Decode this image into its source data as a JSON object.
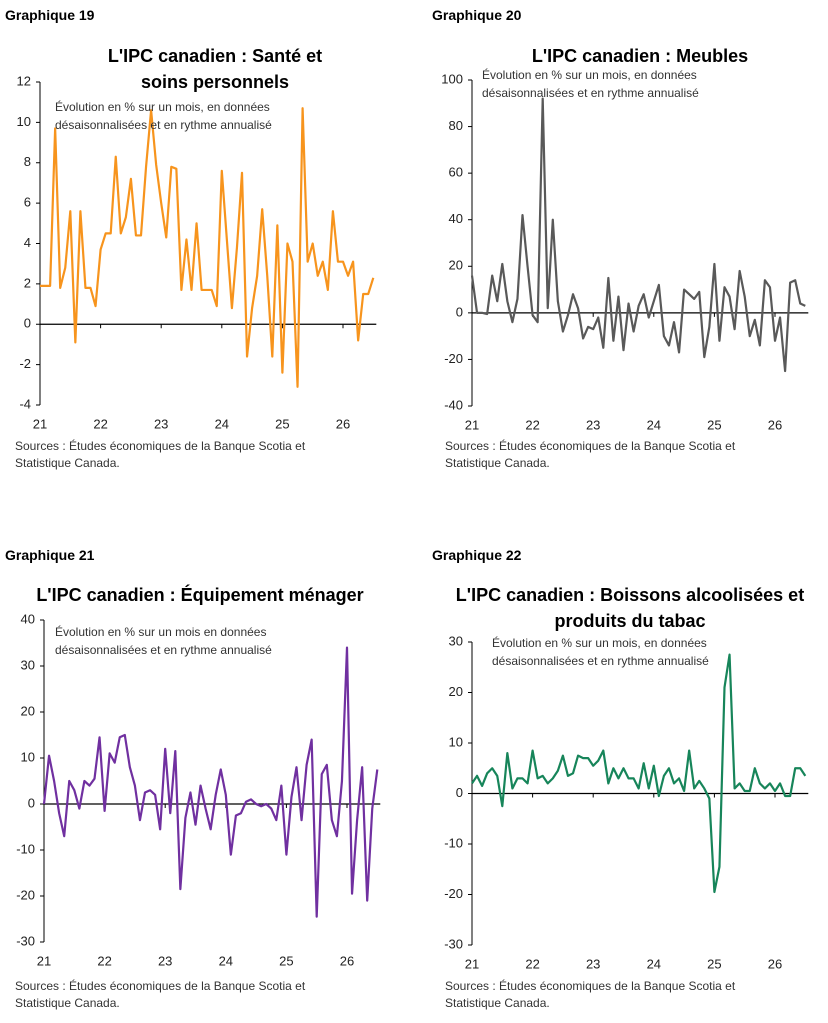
{
  "chart_data": [
    {
      "type": "line",
      "label": "Graphique 19",
      "title": "L'IPC canadien : Santé et soins personnels",
      "subtitle": "Évolution en % sur un mois, en données désaisonnalisées et en rythme annualisé",
      "source": "Sources : Études économiques de la Banque Scotia et Statistique Canada.",
      "color": "#f7941d",
      "categories": [
        "21",
        null,
        null,
        null,
        null,
        null,
        null,
        null,
        null,
        null,
        null,
        null,
        "22",
        null,
        null,
        null,
        null,
        null,
        null,
        null,
        null,
        null,
        null,
        null,
        "23",
        null,
        null,
        null,
        null,
        null,
        null,
        null,
        null,
        null,
        null,
        null,
        "24",
        null,
        null,
        null,
        null,
        null,
        null,
        null,
        null,
        null,
        null,
        null,
        "25",
        null,
        null,
        null,
        null,
        null,
        null,
        null,
        null,
        null,
        null,
        null,
        "26",
        null,
        null,
        null,
        null,
        null,
        null
      ],
      "values": [
        1.9,
        1.9,
        1.9,
        9.7,
        1.8,
        2.8,
        5.6,
        -0.9,
        5.6,
        1.8,
        1.8,
        0.9,
        3.7,
        4.5,
        4.5,
        8.3,
        4.5,
        5.3,
        7.2,
        4.4,
        4.4,
        7.8,
        10.6,
        7.9,
        6.0,
        4.3,
        7.8,
        7.7,
        1.7,
        4.2,
        1.7,
        5.0,
        1.7,
        1.7,
        1.7,
        0.9,
        7.6,
        4.2,
        0.8,
        3.8,
        7.5,
        -1.6,
        0.8,
        2.4,
        5.7,
        2.4,
        -1.6,
        4.9,
        -2.4,
        4.0,
        3.1,
        -3.1,
        10.7,
        3.1,
        4.0,
        2.4,
        3.1,
        1.7,
        5.6,
        3.1,
        3.1,
        2.4,
        3.1,
        -0.8,
        1.5,
        1.5,
        2.3
      ],
      "ylim": [
        -4,
        12
      ],
      "yticks": [
        -4,
        -2,
        0,
        2,
        4,
        6,
        8,
        10,
        12
      ]
    },
    {
      "type": "line",
      "label": "Graphique 20",
      "title": "L'IPC canadien : Meubles",
      "subtitle": "Évolution en % sur un mois, en données désaisonnalisées et en rythme annualisé",
      "source": "Sources : Études économiques de la Banque Scotia et Statistique Canada.",
      "color": "#595959",
      "categories": [
        "21",
        null,
        null,
        null,
        null,
        null,
        null,
        null,
        null,
        null,
        null,
        null,
        "22",
        null,
        null,
        null,
        null,
        null,
        null,
        null,
        null,
        null,
        null,
        null,
        "23",
        null,
        null,
        null,
        null,
        null,
        null,
        null,
        null,
        null,
        null,
        null,
        "24",
        null,
        null,
        null,
        null,
        null,
        null,
        null,
        null,
        null,
        null,
        null,
        "25",
        null,
        null,
        null,
        null,
        null,
        null,
        null,
        null,
        null,
        null,
        null,
        "26",
        null,
        null,
        null,
        null,
        null,
        null
      ],
      "values": [
        16,
        0,
        0,
        -0.5,
        16,
        5,
        21,
        5,
        -4,
        6,
        42,
        20,
        -1,
        -4,
        92,
        2,
        40,
        5,
        -8,
        -1,
        8,
        2,
        -11,
        -6,
        -7,
        -2,
        -15,
        15,
        -12,
        7,
        -16,
        4,
        -8,
        3,
        8,
        -2,
        5,
        12,
        -10,
        -14,
        -4,
        -17,
        10,
        8,
        6,
        9,
        -19,
        -6,
        21,
        -12,
        11,
        7,
        -7,
        18,
        7,
        -10,
        -3,
        -14,
        14,
        11,
        -12,
        -2,
        -25,
        13,
        14,
        4,
        3
      ],
      "ylim": [
        -40,
        100
      ],
      "yticks": [
        -40,
        -20,
        0,
        20,
        40,
        60,
        80,
        100
      ]
    },
    {
      "type": "line",
      "label": "Graphique 21",
      "title": "L'IPC canadien : Équipement ménager",
      "subtitle": "Évolution en % sur un mois en données désaisonnalisées et en rythme annualisé",
      "source": "Sources : Études économiques de la Banque Scotia et Statistique Canada.",
      "color": "#7030a0",
      "categories": [
        "21",
        null,
        null,
        null,
        null,
        null,
        null,
        null,
        null,
        null,
        null,
        null,
        "22",
        null,
        null,
        null,
        null,
        null,
        null,
        null,
        null,
        null,
        null,
        null,
        "23",
        null,
        null,
        null,
        null,
        null,
        null,
        null,
        null,
        null,
        null,
        null,
        "24",
        null,
        null,
        null,
        null,
        null,
        null,
        null,
        null,
        null,
        null,
        null,
        "25",
        null,
        null,
        null,
        null,
        null,
        null,
        null,
        null,
        null,
        null,
        null,
        "26",
        null,
        null,
        null,
        null,
        null,
        null
      ],
      "values": [
        0,
        10.5,
        5,
        -2,
        -7,
        5,
        3,
        -1,
        5,
        4,
        5.5,
        14.5,
        -1.5,
        11,
        9,
        14.5,
        15,
        8,
        4,
        -3.5,
        2.5,
        3,
        2,
        -5.5,
        12,
        -2,
        11.5,
        -18.5,
        -3,
        2.5,
        -4.5,
        4,
        -1,
        -5.5,
        2,
        7.5,
        2,
        -11,
        -2.5,
        -2,
        0.5,
        1,
        0,
        -0.5,
        0,
        -1,
        -3.5,
        4,
        -11,
        1.5,
        8,
        -3.5,
        8.5,
        14,
        -24.5,
        6.5,
        8.5,
        -3.5,
        -7,
        5,
        34,
        -19.5,
        -3.5,
        8,
        -21,
        -1,
        7.5
      ],
      "ylim": [
        -30,
        40
      ],
      "yticks": [
        -30,
        -20,
        -10,
        0,
        10,
        20,
        30,
        40
      ]
    },
    {
      "type": "line",
      "label": "Graphique 22",
      "title": "L'IPC canadien : Boissons alcoolisées et produits du tabac",
      "subtitle": "Évolution en % sur un mois, en données désaisonnalisées et en rythme annualisé",
      "source": "Sources : Études économiques de la Banque Scotia et Statistique Canada.",
      "color": "#17855a",
      "categories": [
        "21",
        null,
        null,
        null,
        null,
        null,
        null,
        null,
        null,
        null,
        null,
        null,
        "22",
        null,
        null,
        null,
        null,
        null,
        null,
        null,
        null,
        null,
        null,
        null,
        "23",
        null,
        null,
        null,
        null,
        null,
        null,
        null,
        null,
        null,
        null,
        null,
        "24",
        null,
        null,
        null,
        null,
        null,
        null,
        null,
        null,
        null,
        null,
        null,
        "25",
        null,
        null,
        null,
        null,
        null,
        null,
        null,
        null,
        null,
        null,
        null,
        "26",
        null,
        null,
        null,
        null,
        null,
        null
      ],
      "values": [
        2,
        3.5,
        1.5,
        4,
        5,
        3.5,
        -2.5,
        8,
        1,
        3,
        3,
        2,
        8.5,
        3,
        3.5,
        2,
        3,
        4.5,
        7.5,
        3.5,
        4,
        7.5,
        7,
        7,
        5.5,
        6.5,
        8.5,
        2,
        5,
        3,
        5,
        3,
        3,
        1,
        6,
        1,
        5.5,
        -0.5,
        3.5,
        5,
        2,
        3,
        0.5,
        8.5,
        1,
        2.5,
        1,
        -1,
        -19.5,
        -14.5,
        21,
        27.5,
        1,
        2,
        0.5,
        0.5,
        5,
        2,
        1,
        2,
        0.5,
        2,
        -0.5,
        -0.5,
        5,
        5,
        3.5
      ],
      "ylim": [
        -30,
        30
      ],
      "yticks": [
        -30,
        -20,
        -10,
        0,
        10,
        20,
        30
      ]
    }
  ]
}
